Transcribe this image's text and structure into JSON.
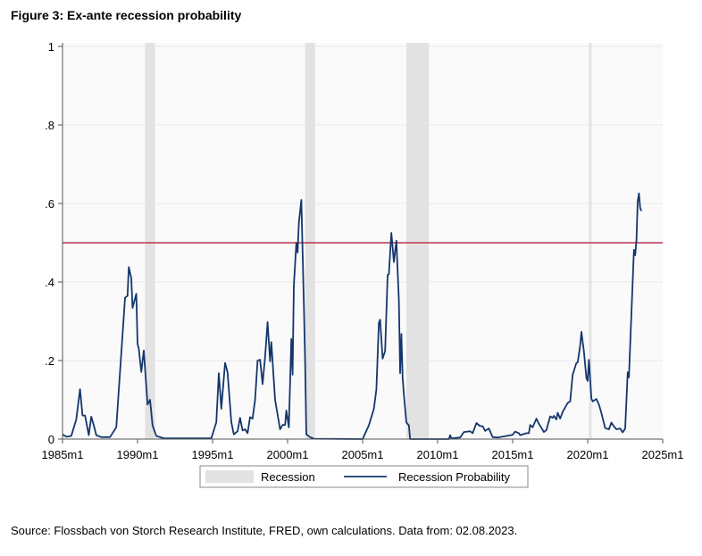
{
  "title": "Figure 3: Ex-ante recession probability",
  "source": "Source: Flossbach von Storch Research Institute, FRED, own calculations. Data from: 02.08.2023.",
  "chart_data": {
    "type": "line",
    "title": "Figure 3: Ex-ante recession probability",
    "xlabel": "",
    "ylabel": "",
    "xlim": [
      "1985m1",
      "2025m1"
    ],
    "ylim": [
      0,
      1
    ],
    "x_ticks": [
      "1985m1",
      "1990m1",
      "1995m1",
      "2000m1",
      "2005m1",
      "2010m1",
      "2015m1",
      "2020m1",
      "2025m1"
    ],
    "y_ticks": [
      0,
      0.2,
      0.4,
      0.6,
      0.8,
      1
    ],
    "y_tick_labels": [
      "0",
      ".2",
      ".4",
      ".6",
      ".8",
      "1"
    ],
    "grid": true,
    "legend_placement": "bottom",
    "threshold": {
      "value": 0.5,
      "color": "#c0334d"
    },
    "recessions": {
      "name": "Recession",
      "color": "#e2e2e2",
      "periods": [
        [
          "1990m7",
          "1991m3"
        ],
        [
          "2001m3",
          "2001m11"
        ],
        [
          "2007m12",
          "2009m6"
        ],
        [
          "2020m2",
          "2020m4"
        ]
      ]
    },
    "series": [
      {
        "name": "Recession Probability",
        "color": "#14366b",
        "points": [
          [
            "1985m1",
            0.012
          ],
          [
            "1985m4",
            0.006
          ],
          [
            "1985m8",
            0.008
          ],
          [
            "1985m12",
            0.05
          ],
          [
            "1986m3",
            0.127
          ],
          [
            "1986m5",
            0.06
          ],
          [
            "1986m7",
            0.06
          ],
          [
            "1986m10",
            0.01
          ],
          [
            "1986m12",
            0.057
          ],
          [
            "1987m2",
            0.035
          ],
          [
            "1987m4",
            0.01
          ],
          [
            "1987m8",
            0.005
          ],
          [
            "1988m3",
            0.005
          ],
          [
            "1988m8",
            0.03
          ],
          [
            "1989m3",
            0.36
          ],
          [
            "1989m5",
            0.365
          ],
          [
            "1989m6",
            0.438
          ],
          [
            "1989m8",
            0.41
          ],
          [
            "1989m9",
            0.334
          ],
          [
            "1989m12",
            0.37
          ],
          [
            "1990m1",
            0.243
          ],
          [
            "1990m2",
            0.23
          ],
          [
            "1990m4",
            0.171
          ],
          [
            "1990m6",
            0.226
          ],
          [
            "1990m8",
            0.134
          ],
          [
            "1990m9",
            0.088
          ],
          [
            "1990m11",
            0.1
          ],
          [
            "1991m1",
            0.035
          ],
          [
            "1991m4",
            0.008
          ],
          [
            "1991m10",
            0.002
          ],
          [
            "1994m12",
            0.002
          ],
          [
            "1995m4",
            0.043
          ],
          [
            "1995m6",
            0.168
          ],
          [
            "1995m8",
            0.077
          ],
          [
            "1995m11",
            0.194
          ],
          [
            "1996m1",
            0.17
          ],
          [
            "1996m4",
            0.043
          ],
          [
            "1996m6",
            0.012
          ],
          [
            "1996m9",
            0.02
          ],
          [
            "1996m11",
            0.054
          ],
          [
            "1997m1",
            0.022
          ],
          [
            "1997m3",
            0.025
          ],
          [
            "1997m5",
            0.015
          ],
          [
            "1997m7",
            0.056
          ],
          [
            "1997m9",
            0.052
          ],
          [
            "1997m11",
            0.1
          ],
          [
            "1998m1",
            0.2
          ],
          [
            "1998m3",
            0.202
          ],
          [
            "1998m5",
            0.14
          ],
          [
            "1998m7",
            0.209
          ],
          [
            "1998m9",
            0.298
          ],
          [
            "1998m11",
            0.198
          ],
          [
            "1998m12",
            0.247
          ],
          [
            "1999m3",
            0.1
          ],
          [
            "1999m7",
            0.025
          ],
          [
            "1999m9",
            0.036
          ],
          [
            "1999m11",
            0.036
          ],
          [
            "1999m12",
            0.073
          ],
          [
            "2000m2",
            0.03
          ],
          [
            "2000m4",
            0.255
          ],
          [
            "2000m5",
            0.164
          ],
          [
            "2000m6",
            0.39
          ],
          [
            "2000m8",
            0.5
          ],
          [
            "2000m9",
            0.475
          ],
          [
            "2000m10",
            0.55
          ],
          [
            "2000m12",
            0.609
          ],
          [
            "2001m2",
            0.345
          ],
          [
            "2001m3",
            0.2
          ],
          [
            "2001m4",
            0.012
          ],
          [
            "2001m7",
            0.005
          ],
          [
            "2001m10",
            0.001
          ],
          [
            "2005m1",
            0
          ],
          [
            "2005m6",
            0.035
          ],
          [
            "2005m10",
            0.077
          ],
          [
            "2005m12",
            0.126
          ],
          [
            "2006m2",
            0.296
          ],
          [
            "2006m3",
            0.304
          ],
          [
            "2006m5",
            0.205
          ],
          [
            "2006m7",
            0.224
          ],
          [
            "2006m9",
            0.418
          ],
          [
            "2006m10",
            0.42
          ],
          [
            "2006m12",
            0.525
          ],
          [
            "2007m2",
            0.451
          ],
          [
            "2007m4",
            0.505
          ],
          [
            "2007m6",
            0.354
          ],
          [
            "2007m7",
            0.168
          ],
          [
            "2007m8",
            0.268
          ],
          [
            "2007m9",
            0.156
          ],
          [
            "2007m10",
            0.114
          ],
          [
            "2007m12",
            0.042
          ],
          [
            "2008m2",
            0.035
          ],
          [
            "2008m3",
            0
          ],
          [
            "2010m10",
            0
          ],
          [
            "2010m11",
            0.01
          ],
          [
            "2010m12",
            0.002
          ],
          [
            "2011m7",
            0.004
          ],
          [
            "2011m10",
            0.018
          ],
          [
            "2012m3",
            0.02
          ],
          [
            "2012m5",
            0.015
          ],
          [
            "2012m8",
            0.041
          ],
          [
            "2012m11",
            0.033
          ],
          [
            "2013m1",
            0.033
          ],
          [
            "2013m3",
            0.021
          ],
          [
            "2013m6",
            0.027
          ],
          [
            "2013m9",
            0.005
          ],
          [
            "2014m1",
            0.004
          ],
          [
            "2014m8",
            0.008
          ],
          [
            "2015m1",
            0.011
          ],
          [
            "2015m3",
            0.019
          ],
          [
            "2015m6",
            0.015
          ],
          [
            "2015m7",
            0.01
          ],
          [
            "2015m12",
            0.015
          ],
          [
            "2016m2",
            0.015
          ],
          [
            "2016m3",
            0.036
          ],
          [
            "2016m5",
            0.03
          ],
          [
            "2016m8",
            0.052
          ],
          [
            "2016m10",
            0.039
          ],
          [
            "2017m2",
            0.018
          ],
          [
            "2017m4",
            0.023
          ],
          [
            "2017m7",
            0.058
          ],
          [
            "2017m9",
            0.054
          ],
          [
            "2017m10",
            0.059
          ],
          [
            "2017m12",
            0.05
          ],
          [
            "2018m1",
            0.067
          ],
          [
            "2018m3",
            0.052
          ],
          [
            "2018m5",
            0.069
          ],
          [
            "2018m9",
            0.092
          ],
          [
            "2018m11",
            0.096
          ],
          [
            "2019m1",
            0.164
          ],
          [
            "2019m4",
            0.194
          ],
          [
            "2019m5",
            0.195
          ],
          [
            "2019m7",
            0.238
          ],
          [
            "2019m8",
            0.273
          ],
          [
            "2019m10",
            0.223
          ],
          [
            "2019m12",
            0.155
          ],
          [
            "2020m1",
            0.148
          ],
          [
            "2020m2",
            0.202
          ],
          [
            "2020m4",
            0.103
          ],
          [
            "2020m5",
            0.096
          ],
          [
            "2020m8",
            0.102
          ],
          [
            "2020m10",
            0.088
          ],
          [
            "2020m12",
            0.066
          ],
          [
            "2021m3",
            0.028
          ],
          [
            "2021m6",
            0.025
          ],
          [
            "2021m8",
            0.042
          ],
          [
            "2021m10",
            0.032
          ],
          [
            "2021m12",
            0.025
          ],
          [
            "2022m3",
            0.027
          ],
          [
            "2022m5",
            0.017
          ],
          [
            "2022m7",
            0.027
          ],
          [
            "2022m9",
            0.17
          ],
          [
            "2022m10",
            0.157
          ],
          [
            "2022m11",
            0.24
          ],
          [
            "2023m2",
            0.482
          ],
          [
            "2023m3",
            0.468
          ],
          [
            "2023m4",
            0.506
          ],
          [
            "2023m5",
            0.605
          ],
          [
            "2023m6",
            0.626
          ],
          [
            "2023m7",
            0.588
          ],
          [
            "2023m8",
            0.581
          ]
        ]
      }
    ],
    "legend": [
      "Recession",
      "Recession Probability"
    ]
  }
}
